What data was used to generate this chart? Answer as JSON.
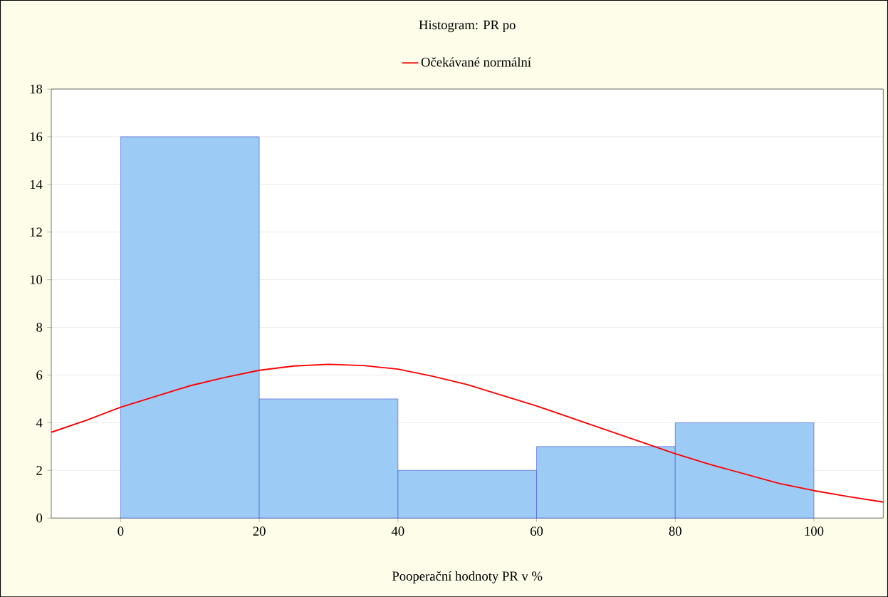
{
  "chart_data": {
    "type": "histogram",
    "title": "Histogram: PR po",
    "xlabel": "Pooperační hodnoty PR v %",
    "bins": [
      0,
      20,
      40,
      60,
      80,
      100
    ],
    "values": [
      16,
      5,
      2,
      3,
      4
    ],
    "color": "#9ccbf6",
    "series": [
      {
        "type": "line",
        "name": "Očekávané normální",
        "color": "#ff0000",
        "x": [
          -10,
          -5,
          0,
          5,
          10,
          15,
          20,
          25,
          30,
          35,
          40,
          45,
          50,
          55,
          60,
          65,
          70,
          75,
          80,
          85,
          90,
          95,
          100,
          105,
          110
        ],
        "values": [
          3.6,
          4.1,
          4.65,
          5.1,
          5.55,
          5.9,
          6.2,
          6.38,
          6.45,
          6.4,
          6.25,
          5.95,
          5.6,
          5.15,
          4.7,
          4.2,
          3.7,
          3.2,
          2.7,
          2.25,
          1.85,
          1.45,
          1.15,
          0.9,
          0.67
        ]
      }
    ],
    "xlim": [
      -10,
      110
    ],
    "ylim": [
      0,
      18
    ],
    "xticks": [
      0,
      20,
      40,
      60,
      80,
      100
    ],
    "yticks": [
      0,
      2,
      4,
      6,
      8,
      10,
      12,
      14,
      16,
      18
    ],
    "grid": "y",
    "legend": "top",
    "marker": "none",
    "line_style": "solid"
  }
}
